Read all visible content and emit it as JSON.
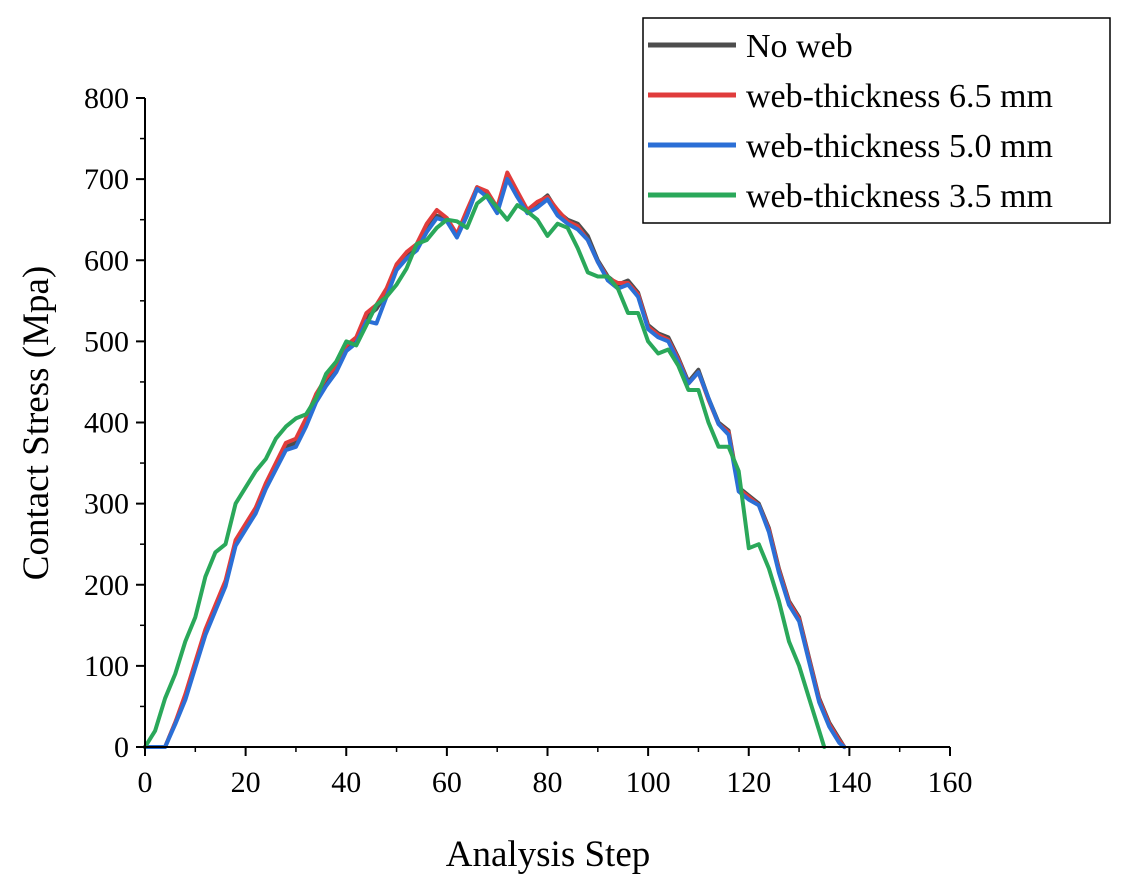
{
  "chart_data": {
    "type": "line",
    "xlabel": "Analysis Step",
    "ylabel": "Contact Stress (Mpa)",
    "xlim": [
      0,
      160
    ],
    "ylim": [
      0,
      800
    ],
    "xticks": [
      "0",
      "20",
      "40",
      "60",
      "80",
      "100",
      "120",
      "140",
      "160"
    ],
    "yticks": [
      "0",
      "100",
      "200",
      "300",
      "400",
      "500",
      "600",
      "700",
      "800"
    ],
    "grid": false,
    "legend_position": "top-right",
    "series": [
      {
        "name": "No web",
        "color": "#4d4d4d",
        "x": [
          0,
          4,
          6,
          8,
          10,
          12,
          14,
          16,
          18,
          20,
          22,
          24,
          26,
          28,
          30,
          32,
          34,
          36,
          38,
          40,
          42,
          44,
          46,
          48,
          50,
          52,
          54,
          56,
          58,
          60,
          62,
          64,
          66,
          68,
          70,
          72,
          74,
          76,
          78,
          80,
          82,
          84,
          86,
          88,
          90,
          92,
          94,
          96,
          98,
          100,
          102,
          104,
          106,
          108,
          110,
          112,
          114,
          116,
          118,
          120,
          122,
          124,
          126,
          128,
          130,
          132,
          134,
          136,
          138,
          139
        ],
        "y": [
          0,
          0,
          30,
          60,
          100,
          140,
          170,
          200,
          250,
          270,
          290,
          320,
          345,
          370,
          375,
          400,
          430,
          450,
          465,
          490,
          500,
          530,
          540,
          560,
          590,
          605,
          615,
          640,
          655,
          650,
          630,
          660,
          690,
          680,
          660,
          705,
          680,
          660,
          670,
          680,
          660,
          650,
          645,
          630,
          600,
          580,
          570,
          575,
          560,
          520,
          510,
          505,
          480,
          450,
          465,
          430,
          400,
          390,
          320,
          310,
          300,
          270,
          220,
          180,
          160,
          110,
          60,
          30,
          10,
          0
        ]
      },
      {
        "name": "web-thickness 6.5 mm",
        "color": "#e03c3c",
        "x": [
          0,
          4,
          6,
          8,
          10,
          12,
          14,
          16,
          18,
          20,
          22,
          24,
          26,
          28,
          30,
          32,
          34,
          36,
          38,
          40,
          42,
          44,
          46,
          48,
          50,
          52,
          54,
          56,
          58,
          60,
          62,
          64,
          66,
          68,
          70,
          72,
          74,
          76,
          78,
          80,
          82,
          84,
          86,
          88,
          90,
          92,
          94,
          96,
          98,
          100,
          102,
          104,
          106,
          108,
          110,
          112,
          114,
          116,
          118,
          120,
          122,
          124,
          126,
          128,
          130,
          132,
          134,
          136,
          138,
          139
        ],
        "y": [
          0,
          0,
          30,
          65,
          105,
          145,
          175,
          205,
          255,
          275,
          295,
          325,
          350,
          375,
          380,
          405,
          435,
          455,
          470,
          495,
          505,
          535,
          545,
          565,
          595,
          610,
          620,
          645,
          662,
          652,
          632,
          662,
          690,
          685,
          665,
          708,
          685,
          662,
          672,
          678,
          662,
          648,
          642,
          625,
          598,
          578,
          572,
          572,
          558,
          518,
          508,
          502,
          478,
          448,
          462,
          428,
          398,
          388,
          318,
          308,
          298,
          268,
          218,
          178,
          158,
          108,
          58,
          28,
          8,
          0
        ]
      },
      {
        "name": "web-thickness 5.0 mm",
        "color": "#2b6fd6",
        "x": [
          0,
          4,
          6,
          8,
          10,
          12,
          14,
          16,
          18,
          20,
          22,
          24,
          26,
          28,
          30,
          32,
          34,
          36,
          38,
          40,
          42,
          44,
          46,
          48,
          50,
          52,
          54,
          56,
          58,
          60,
          62,
          64,
          66,
          68,
          70,
          72,
          74,
          76,
          78,
          80,
          82,
          84,
          86,
          88,
          90,
          92,
          94,
          96,
          98,
          100,
          102,
          104,
          106,
          108,
          110,
          112,
          114,
          116,
          118,
          120,
          122,
          124,
          126,
          128,
          130,
          132,
          134,
          136,
          138,
          139
        ],
        "y": [
          0,
          0,
          28,
          58,
          98,
          138,
          168,
          198,
          248,
          268,
          288,
          318,
          342,
          366,
          370,
          395,
          425,
          445,
          462,
          488,
          498,
          525,
          522,
          555,
          588,
          602,
          612,
          635,
          652,
          648,
          628,
          655,
          688,
          678,
          658,
          700,
          678,
          658,
          665,
          675,
          655,
          645,
          638,
          625,
          598,
          575,
          565,
          570,
          555,
          515,
          505,
          500,
          475,
          448,
          462,
          430,
          398,
          385,
          315,
          305,
          298,
          265,
          215,
          175,
          155,
          105,
          55,
          25,
          5,
          0
        ]
      },
      {
        "name": "web-thickness 3.5 mm",
        "color": "#2aa85a",
        "x": [
          0,
          2,
          4,
          6,
          8,
          10,
          12,
          14,
          16,
          18,
          20,
          22,
          24,
          26,
          28,
          30,
          32,
          34,
          36,
          38,
          40,
          42,
          44,
          46,
          48,
          50,
          52,
          54,
          56,
          58,
          60,
          62,
          64,
          66,
          68,
          70,
          72,
          74,
          76,
          78,
          80,
          82,
          84,
          86,
          88,
          90,
          92,
          94,
          96,
          98,
          100,
          102,
          104,
          106,
          108,
          110,
          112,
          114,
          116,
          118,
          120,
          122,
          124,
          126,
          128,
          130,
          132,
          134,
          135
        ],
        "y": [
          0,
          20,
          60,
          90,
          130,
          160,
          210,
          240,
          250,
          300,
          320,
          340,
          355,
          380,
          395,
          405,
          410,
          430,
          460,
          475,
          500,
          495,
          520,
          545,
          555,
          570,
          590,
          620,
          625,
          640,
          650,
          648,
          640,
          670,
          680,
          665,
          650,
          668,
          660,
          650,
          630,
          645,
          640,
          615,
          585,
          580,
          580,
          565,
          535,
          535,
          500,
          485,
          490,
          470,
          440,
          440,
          400,
          370,
          370,
          340,
          245,
          250,
          220,
          180,
          130,
          100,
          60,
          20,
          0
        ]
      }
    ]
  }
}
